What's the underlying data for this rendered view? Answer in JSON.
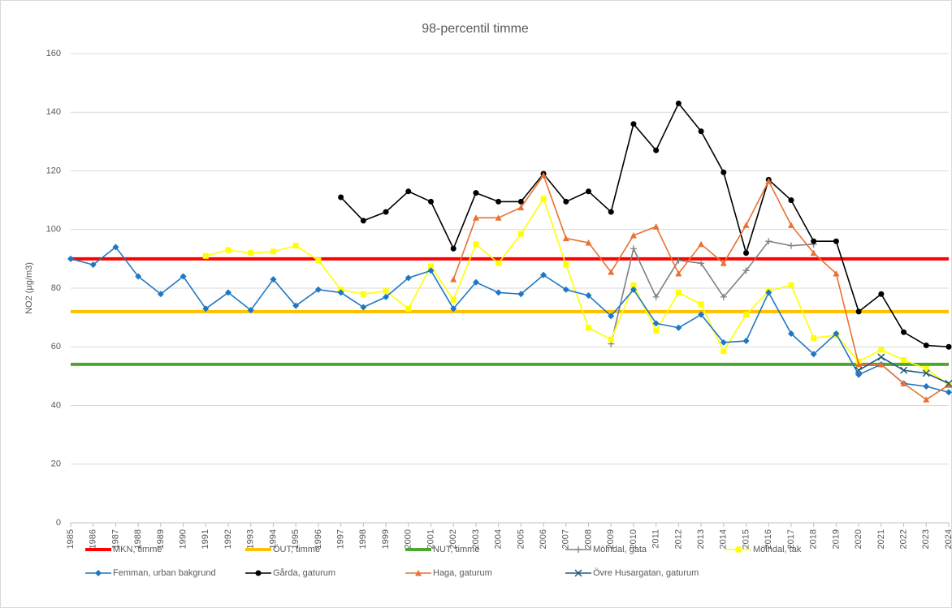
{
  "chart_data": {
    "type": "line",
    "title": "98-percentil timme",
    "y_label": "NO2 (µg/m3)",
    "categories": [
      "1985",
      "1986",
      "1987",
      "1988",
      "1989",
      "1990",
      "1991",
      "1992",
      "1993",
      "1994",
      "1995",
      "1996",
      "1997",
      "1998",
      "1999",
      "2000",
      "2001",
      "2002",
      "2003",
      "2004",
      "2005",
      "2006",
      "2007",
      "2008",
      "2009",
      "2010",
      "2011",
      "2012",
      "2013",
      "2014",
      "2015",
      "2016",
      "2017",
      "2018",
      "2019",
      "2020",
      "2021",
      "2022",
      "2023",
      "2024"
    ],
    "ylim": [
      0,
      160
    ],
    "yticks": [
      0,
      20,
      40,
      60,
      80,
      100,
      120,
      140,
      160
    ],
    "grid": true,
    "legend": "bottom",
    "series": [
      {
        "name": "MKN, timme",
        "color": "#ff0000",
        "marker": "none",
        "values": [
          90,
          90,
          90,
          90,
          90,
          90,
          90,
          90,
          90,
          90,
          90,
          90,
          90,
          90,
          90,
          90,
          90,
          90,
          90,
          90,
          90,
          90,
          90,
          90,
          90,
          90,
          90,
          90,
          90,
          90,
          90,
          90,
          90,
          90,
          90,
          90,
          90,
          90,
          90,
          90
        ]
      },
      {
        "name": "ÖUT, timme",
        "color": "#ffc000",
        "marker": "none",
        "values": [
          72,
          72,
          72,
          72,
          72,
          72,
          72,
          72,
          72,
          72,
          72,
          72,
          72,
          72,
          72,
          72,
          72,
          72,
          72,
          72,
          72,
          72,
          72,
          72,
          72,
          72,
          72,
          72,
          72,
          72,
          72,
          72,
          72,
          72,
          72,
          72,
          72,
          72,
          72,
          72
        ]
      },
      {
        "name": "NUT, timme",
        "color": "#4ea72e",
        "marker": "none",
        "values": [
          54,
          54,
          54,
          54,
          54,
          54,
          54,
          54,
          54,
          54,
          54,
          54,
          54,
          54,
          54,
          54,
          54,
          54,
          54,
          54,
          54,
          54,
          54,
          54,
          54,
          54,
          54,
          54,
          54,
          54,
          54,
          54,
          54,
          54,
          54,
          54,
          54,
          54,
          54,
          54
        ]
      },
      {
        "name": "Mölndal, gata",
        "color": "#808080",
        "marker": "plus",
        "values": [
          null,
          null,
          null,
          null,
          null,
          null,
          null,
          null,
          null,
          null,
          null,
          null,
          null,
          null,
          null,
          null,
          null,
          null,
          null,
          null,
          null,
          null,
          null,
          null,
          61,
          93.5,
          77,
          89.5,
          88.5,
          77,
          86,
          96,
          94.5,
          95,
          null,
          null,
          null,
          null,
          null,
          null
        ]
      },
      {
        "name": "Mölndal, tak",
        "color": "#ffff00",
        "marker": "square",
        "values": [
          null,
          null,
          null,
          null,
          null,
          null,
          91,
          93,
          92,
          92.5,
          94.5,
          89.5,
          79.5,
          78,
          79,
          73,
          87.5,
          76,
          95,
          88.5,
          98.5,
          110.5,
          88,
          66.5,
          62.5,
          81,
          65.5,
          78.5,
          74.5,
          58.5,
          71,
          79,
          81,
          63,
          64,
          55,
          59,
          55.5,
          52.5,
          47
        ]
      },
      {
        "name": "Femman, urban bakgrund",
        "color": "#1f77c4",
        "marker": "diamond",
        "values": [
          90,
          88,
          94,
          84,
          78,
          84,
          73,
          78.5,
          72.5,
          83,
          74,
          79.5,
          78.5,
          73.5,
          77,
          83.5,
          86,
          73,
          82,
          78.5,
          78,
          84.5,
          79.5,
          77.5,
          70.5,
          79.5,
          68,
          66.5,
          71,
          61.5,
          62,
          78.5,
          64.5,
          57.5,
          64.5,
          50.5,
          54,
          47.5,
          46.5,
          44.5
        ]
      },
      {
        "name": "Gårda, gaturum",
        "color": "#000000",
        "marker": "circle",
        "values": [
          null,
          null,
          null,
          null,
          null,
          null,
          null,
          null,
          null,
          null,
          null,
          null,
          111,
          103,
          106,
          113,
          109.5,
          93.5,
          112.5,
          109.5,
          109.5,
          119,
          109.5,
          113,
          106,
          136,
          127,
          143,
          133.5,
          119.5,
          92,
          117,
          110,
          96,
          96,
          72,
          78,
          65,
          60.5,
          60
        ]
      },
      {
        "name": "Haga, gaturum",
        "color": "#e97132",
        "marker": "triangle",
        "values": [
          null,
          null,
          null,
          null,
          null,
          null,
          null,
          null,
          null,
          null,
          null,
          null,
          null,
          null,
          null,
          null,
          null,
          83,
          104,
          104,
          107.5,
          118.5,
          97,
          95.5,
          85.5,
          98,
          101,
          85,
          95,
          88.5,
          101.5,
          116.5,
          101.5,
          92,
          85,
          54,
          54,
          47.5,
          42,
          47
        ]
      },
      {
        "name": "Övre Husargatan, gaturum",
        "color": "#1f5c7a",
        "marker": "x",
        "values": [
          null,
          null,
          null,
          null,
          null,
          null,
          null,
          null,
          null,
          null,
          null,
          null,
          null,
          null,
          null,
          null,
          null,
          null,
          null,
          null,
          null,
          null,
          null,
          null,
          null,
          null,
          null,
          null,
          null,
          null,
          null,
          null,
          null,
          null,
          null,
          52,
          56.5,
          52,
          51,
          47.5
        ]
      }
    ]
  }
}
